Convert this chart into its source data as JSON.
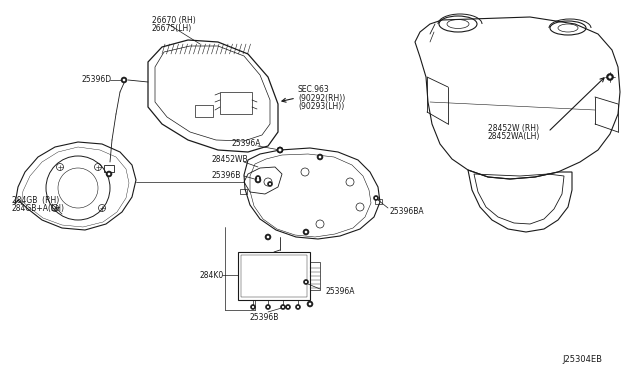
{
  "bg_color": "#ffffff",
  "line_color": "#1a1a1a",
  "text_color": "#1a1a1a",
  "diagram_id": "J25304EB",
  "fig_w": 6.4,
  "fig_h": 3.72,
  "dpi": 100,
  "labels": {
    "26670_RH": "26670 (RH)",
    "26675_LH": "26675(LH)",
    "25396D": "25396D",
    "SEC963": "SEC.963",
    "90292_RH": "(90292(RH))",
    "90293_LH": "(90293(LH))",
    "28452W_RH": "28452W (RH)",
    "28452WA_LH": "28452WA(LH)",
    "25396A_mid": "25396A",
    "284GB_RH": "284GB  (RH)",
    "284GB_LH": "284GB+A(LH)",
    "28452WB": "28452WB",
    "25396B_mid": "25396B",
    "284K0": "284K0",
    "25396A_bot": "25396A",
    "25396B_bot": "25396B",
    "25396BA": "25396BA"
  },
  "fs": 5.5,
  "fs2": 6.0
}
